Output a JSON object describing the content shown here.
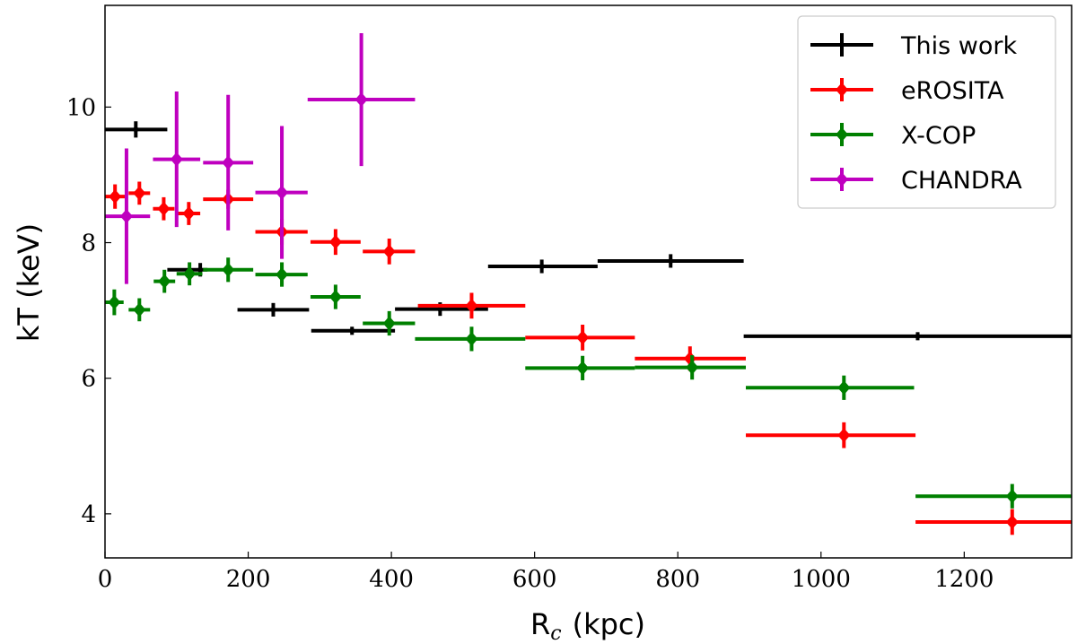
{
  "chart_data": {
    "type": "scatter",
    "title": "",
    "xlabel": "R",
    "xlabel_sub": "c",
    "xlabel_unit": "(kpc)",
    "ylabel": "kT (keV)",
    "xlim": [
      0,
      1350
    ],
    "ylim": [
      3.35,
      11.5
    ],
    "xticks": [
      0,
      200,
      400,
      600,
      800,
      1000,
      1200
    ],
    "yticks": [
      4,
      6,
      8,
      10
    ],
    "legend_position": "top-right",
    "series": [
      {
        "name": "This work",
        "color": "#000000",
        "marker": "small-dot",
        "points": [
          {
            "x": 43,
            "y": 9.67,
            "xlo": 0,
            "xhi": 87,
            "ylo": 9.55,
            "yhi": 9.79
          },
          {
            "x": 133,
            "y": 7.6,
            "xlo": 87,
            "xhi": 143,
            "ylo": 7.5,
            "yhi": 7.7
          },
          {
            "x": 235,
            "y": 7.01,
            "xlo": 185,
            "xhi": 285,
            "ylo": 6.91,
            "yhi": 7.11
          },
          {
            "x": 345,
            "y": 6.7,
            "xlo": 288,
            "xhi": 405,
            "ylo": 6.64,
            "yhi": 6.76
          },
          {
            "x": 468,
            "y": 7.02,
            "xlo": 405,
            "xhi": 535,
            "ylo": 6.92,
            "yhi": 7.12
          },
          {
            "x": 610,
            "y": 7.65,
            "xlo": 535,
            "xhi": 688,
            "ylo": 7.55,
            "yhi": 7.75
          },
          {
            "x": 790,
            "y": 7.73,
            "xlo": 688,
            "xhi": 892,
            "ylo": 7.63,
            "yhi": 7.83
          },
          {
            "x": 1135,
            "y": 6.62,
            "xlo": 892,
            "xhi": 1350,
            "ylo": 6.56,
            "yhi": 6.68
          }
        ]
      },
      {
        "name": "eROSITA",
        "color": "#ff0000",
        "marker": "diamond",
        "points": [
          {
            "x": 14,
            "y": 8.68,
            "xlo": 0,
            "xhi": 28,
            "ylo": 8.5,
            "yhi": 8.86
          },
          {
            "x": 48,
            "y": 8.73,
            "xlo": 33,
            "xhi": 63,
            "ylo": 8.56,
            "yhi": 8.9
          },
          {
            "x": 82,
            "y": 8.5,
            "xlo": 67,
            "xhi": 97,
            "ylo": 8.33,
            "yhi": 8.67
          },
          {
            "x": 117,
            "y": 8.43,
            "xlo": 100,
            "xhi": 133,
            "ylo": 8.26,
            "yhi": 8.6
          },
          {
            "x": 172,
            "y": 8.64,
            "xlo": 137,
            "xhi": 207,
            "ylo": 8.5,
            "yhi": 8.78
          },
          {
            "x": 247,
            "y": 8.16,
            "xlo": 210,
            "xhi": 283,
            "ylo": 7.97,
            "yhi": 8.35
          },
          {
            "x": 322,
            "y": 8.01,
            "xlo": 287,
            "xhi": 357,
            "ylo": 7.82,
            "yhi": 8.2
          },
          {
            "x": 397,
            "y": 7.87,
            "xlo": 360,
            "xhi": 433,
            "ylo": 7.68,
            "yhi": 8.06
          },
          {
            "x": 512,
            "y": 7.07,
            "xlo": 437,
            "xhi": 587,
            "ylo": 6.88,
            "yhi": 7.26
          },
          {
            "x": 667,
            "y": 6.6,
            "xlo": 587,
            "xhi": 740,
            "ylo": 6.41,
            "yhi": 6.79
          },
          {
            "x": 817,
            "y": 6.29,
            "xlo": 740,
            "xhi": 895,
            "ylo": 6.11,
            "yhi": 6.47
          },
          {
            "x": 1032,
            "y": 5.16,
            "xlo": 895,
            "xhi": 1132,
            "ylo": 4.97,
            "yhi": 5.35
          },
          {
            "x": 1267,
            "y": 3.88,
            "xlo": 1132,
            "xhi": 1350,
            "ylo": 3.69,
            "yhi": 4.07
          }
        ]
      },
      {
        "name": "X-COP",
        "color": "#008000",
        "marker": "diamond",
        "points": [
          {
            "x": 13,
            "y": 7.12,
            "xlo": 0,
            "xhi": 26,
            "ylo": 6.93,
            "yhi": 7.31
          },
          {
            "x": 48,
            "y": 7.01,
            "xlo": 33,
            "xhi": 63,
            "ylo": 6.84,
            "yhi": 7.18
          },
          {
            "x": 83,
            "y": 7.43,
            "xlo": 68,
            "xhi": 98,
            "ylo": 7.26,
            "yhi": 7.6
          },
          {
            "x": 118,
            "y": 7.54,
            "xlo": 100,
            "xhi": 136,
            "ylo": 7.37,
            "yhi": 7.71
          },
          {
            "x": 172,
            "y": 7.6,
            "xlo": 137,
            "xhi": 207,
            "ylo": 7.42,
            "yhi": 7.78
          },
          {
            "x": 247,
            "y": 7.53,
            "xlo": 210,
            "xhi": 283,
            "ylo": 7.35,
            "yhi": 7.71
          },
          {
            "x": 322,
            "y": 7.2,
            "xlo": 287,
            "xhi": 357,
            "ylo": 7.02,
            "yhi": 7.38
          },
          {
            "x": 397,
            "y": 6.81,
            "xlo": 360,
            "xhi": 433,
            "ylo": 6.63,
            "yhi": 6.99
          },
          {
            "x": 512,
            "y": 6.58,
            "xlo": 433,
            "xhi": 587,
            "ylo": 6.4,
            "yhi": 6.76
          },
          {
            "x": 667,
            "y": 6.15,
            "xlo": 587,
            "xhi": 740,
            "ylo": 5.97,
            "yhi": 6.33
          },
          {
            "x": 820,
            "y": 6.16,
            "xlo": 740,
            "xhi": 895,
            "ylo": 5.98,
            "yhi": 6.34
          },
          {
            "x": 1032,
            "y": 5.86,
            "xlo": 895,
            "xhi": 1130,
            "ylo": 5.68,
            "yhi": 6.04
          },
          {
            "x": 1267,
            "y": 4.26,
            "xlo": 1132,
            "xhi": 1350,
            "ylo": 4.08,
            "yhi": 4.44
          }
        ]
      },
      {
        "name": "CHANDRA",
        "color": "#bf00bf",
        "marker": "diamond",
        "points": [
          {
            "x": 30,
            "y": 8.39,
            "xlo": 0,
            "xhi": 63,
            "ylo": 7.39,
            "yhi": 9.39
          },
          {
            "x": 100,
            "y": 9.23,
            "xlo": 67,
            "xhi": 133,
            "ylo": 8.23,
            "yhi": 10.23
          },
          {
            "x": 172,
            "y": 9.18,
            "xlo": 137,
            "xhi": 207,
            "ylo": 8.18,
            "yhi": 10.18
          },
          {
            "x": 247,
            "y": 8.74,
            "xlo": 210,
            "xhi": 283,
            "ylo": 7.76,
            "yhi": 9.72
          },
          {
            "x": 358,
            "y": 10.11,
            "xlo": 283,
            "xhi": 433,
            "ylo": 9.13,
            "yhi": 11.09
          }
        ]
      }
    ]
  }
}
